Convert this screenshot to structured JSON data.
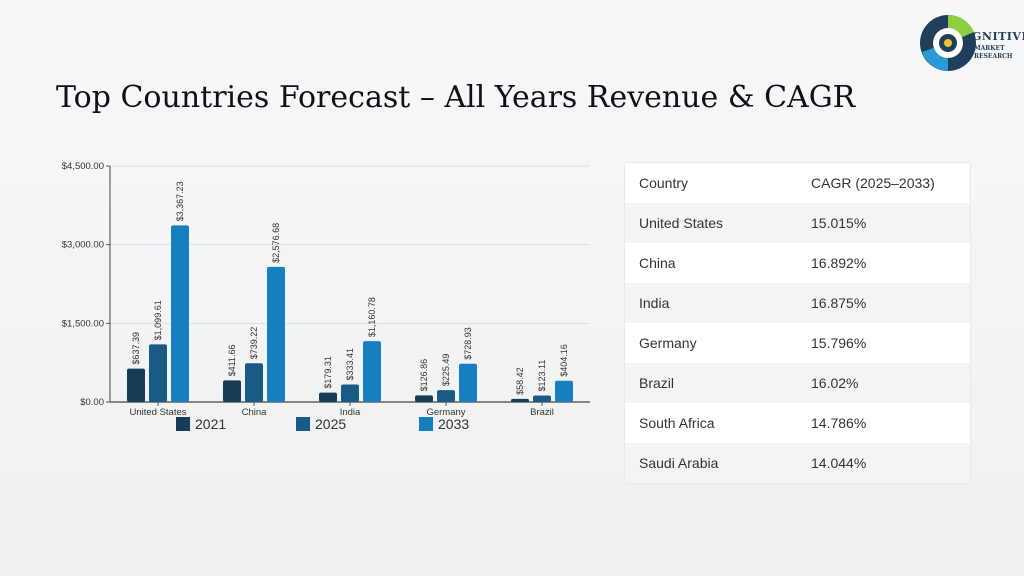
{
  "header": {
    "title": "Top Countries Forecast – All Years Revenue & CAGR"
  },
  "logo": {
    "main_text": "GNITIVE",
    "sub_line1": "MARKET",
    "sub_line2": "RESEARCH",
    "colors": [
      "#1f3f5b",
      "#8ecf3f",
      "#2a9ad6",
      "#f2c230"
    ]
  },
  "chart_data": {
    "type": "bar",
    "categories": [
      "United States",
      "China",
      "India",
      "Germany",
      "Brazil"
    ],
    "series": [
      {
        "name": "2021",
        "values": [
          637.39,
          411.66,
          179.31,
          126.86,
          58.42
        ],
        "labels": [
          "$637.39",
          "$411.66",
          "$179.31",
          "$126.86",
          "$58.42"
        ],
        "color": "#163c56"
      },
      {
        "name": "2025",
        "values": [
          1099.61,
          739.22,
          333.41,
          225.49,
          123.11
        ],
        "labels": [
          "$1,099.61",
          "$739.22",
          "$333.41",
          "$225.49",
          "$123.11"
        ],
        "color": "#1a5a87"
      },
      {
        "name": "2033",
        "values": [
          3367.23,
          2576.68,
          1160.78,
          728.93,
          404.16
        ],
        "labels": [
          "$3,367.23",
          "$2,576.68",
          "$1,160.78",
          "$728.93",
          "$404.16"
        ],
        "color": "#1580bd"
      }
    ],
    "yticks": [
      0,
      1500,
      3000,
      4500
    ],
    "ytick_labels": [
      "$0.00",
      "$1,500.00",
      "$3,000.00",
      "$4,500.00"
    ],
    "ylim": [
      0,
      4500
    ],
    "grid": true,
    "legend_position": "bottom"
  },
  "table": {
    "headers": [
      "Country",
      "CAGR (2025–2033)"
    ],
    "rows": [
      [
        "United States",
        "15.015%"
      ],
      [
        "China",
        "16.892%"
      ],
      [
        "India",
        "16.875%"
      ],
      [
        "Germany",
        "15.796%"
      ],
      [
        "Brazil",
        "16.02%"
      ],
      [
        "South Africa",
        "14.786%"
      ],
      [
        "Saudi Arabia",
        "14.044%"
      ]
    ]
  }
}
